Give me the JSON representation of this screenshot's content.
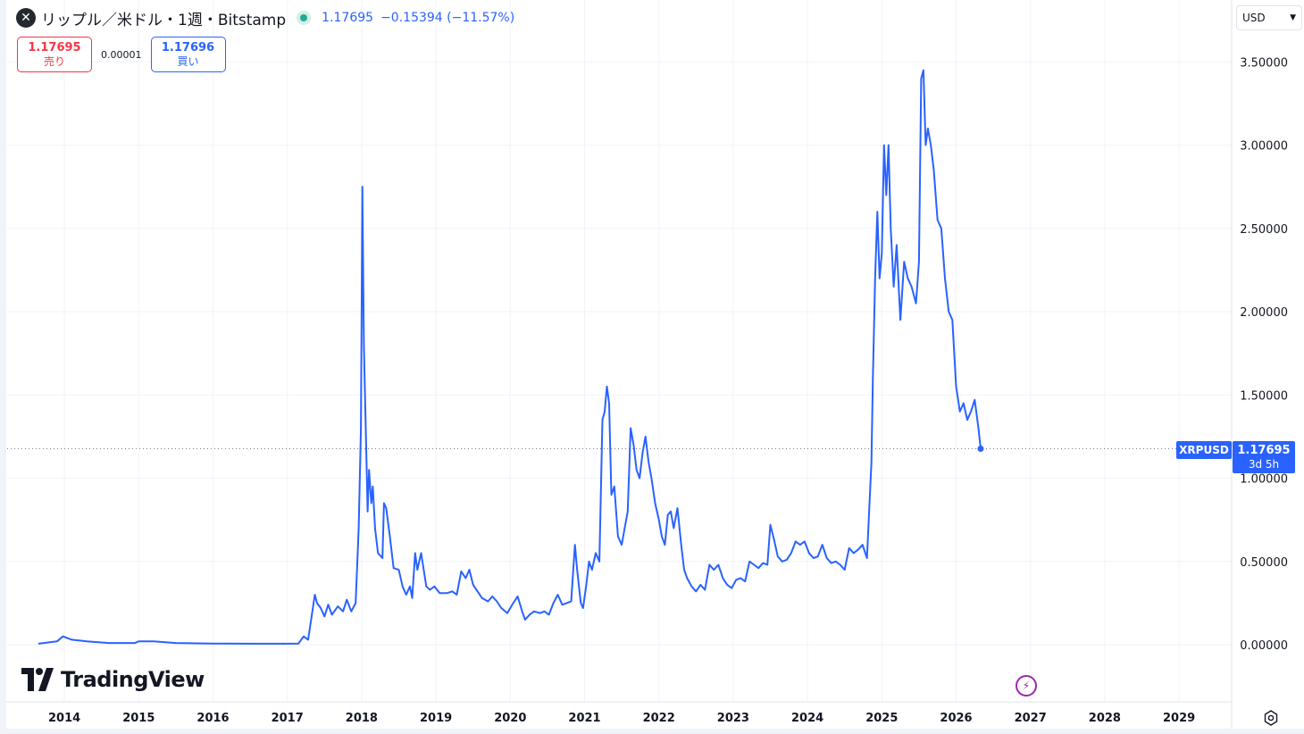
{
  "header": {
    "symbol_icon": "xrp-logo-icon",
    "symbol_icon_glyph": "✕",
    "title": "リップル／米ドル・1週・Bitstamp",
    "last_price": "1.17695",
    "change": "−0.15394 (−11.57%)",
    "status_color": "#22ab94"
  },
  "trade": {
    "sell_price": "1.17695",
    "sell_label": "売り",
    "spread": "0.00001",
    "buy_price": "1.17696",
    "buy_label": "買い"
  },
  "currency": {
    "value": "USD"
  },
  "price_tag": {
    "symbol": "XRPUSD",
    "price": "1.17695",
    "countdown": "3d 5h"
  },
  "branding": {
    "logo_text": "TradingView"
  },
  "icons": {
    "flash": "flash-icon",
    "settings": "settings-icon"
  },
  "colors": {
    "line": "#2962ff",
    "grid": "#f0f3fa",
    "axis_text": "#131722",
    "sell": "#f23645",
    "buy": "#2962ff"
  },
  "chart_data": {
    "type": "line",
    "title": "リップル／米ドル・1週・Bitstamp",
    "xlabel": "",
    "ylabel": "",
    "ylim": [
      0,
      3.5
    ],
    "xlim": [
      2013.5,
      2029.0
    ],
    "y_ticks": [
      "3.50000",
      "3.00000",
      "2.50000",
      "2.00000",
      "1.50000",
      "1.00000",
      "0.50000",
      "0.00000"
    ],
    "x_ticks": [
      "2014",
      "2015",
      "2016",
      "2017",
      "2018",
      "2019",
      "2020",
      "2021",
      "2022",
      "2023",
      "2024",
      "2025",
      "2026",
      "2027",
      "2028",
      "2029"
    ],
    "grid": true,
    "last_value": 1.17695,
    "series": [
      {
        "points": [
          [
            2013.65,
            0.006
          ],
          [
            2013.9,
            0.02
          ],
          [
            2013.98,
            0.05
          ],
          [
            2014.1,
            0.03
          ],
          [
            2014.3,
            0.02
          ],
          [
            2014.6,
            0.01
          ],
          [
            2014.95,
            0.01
          ],
          [
            2015.0,
            0.02
          ],
          [
            2015.2,
            0.02
          ],
          [
            2015.5,
            0.01
          ],
          [
            2016.0,
            0.007
          ],
          [
            2016.5,
            0.006
          ],
          [
            2017.0,
            0.006
          ],
          [
            2017.15,
            0.007
          ],
          [
            2017.22,
            0.05
          ],
          [
            2017.28,
            0.03
          ],
          [
            2017.33,
            0.18
          ],
          [
            2017.37,
            0.3
          ],
          [
            2017.4,
            0.25
          ],
          [
            2017.45,
            0.22
          ],
          [
            2017.5,
            0.17
          ],
          [
            2017.55,
            0.24
          ],
          [
            2017.6,
            0.18
          ],
          [
            2017.68,
            0.23
          ],
          [
            2017.75,
            0.2
          ],
          [
            2017.8,
            0.27
          ],
          [
            2017.86,
            0.2
          ],
          [
            2017.92,
            0.25
          ],
          [
            2017.96,
            0.7
          ],
          [
            2017.99,
            1.3
          ],
          [
            2018.0,
            2.0
          ],
          [
            2018.01,
            2.75
          ],
          [
            2018.03,
            1.8
          ],
          [
            2018.05,
            1.4
          ],
          [
            2018.08,
            0.8
          ],
          [
            2018.1,
            1.05
          ],
          [
            2018.13,
            0.85
          ],
          [
            2018.15,
            0.95
          ],
          [
            2018.18,
            0.7
          ],
          [
            2018.22,
            0.55
          ],
          [
            2018.28,
            0.52
          ],
          [
            2018.3,
            0.85
          ],
          [
            2018.33,
            0.82
          ],
          [
            2018.38,
            0.65
          ],
          [
            2018.43,
            0.46
          ],
          [
            2018.5,
            0.45
          ],
          [
            2018.55,
            0.35
          ],
          [
            2018.6,
            0.3
          ],
          [
            2018.65,
            0.35
          ],
          [
            2018.68,
            0.28
          ],
          [
            2018.72,
            0.55
          ],
          [
            2018.75,
            0.45
          ],
          [
            2018.8,
            0.55
          ],
          [
            2018.87,
            0.35
          ],
          [
            2018.92,
            0.33
          ],
          [
            2018.98,
            0.35
          ],
          [
            2019.05,
            0.31
          ],
          [
            2019.15,
            0.31
          ],
          [
            2019.22,
            0.32
          ],
          [
            2019.28,
            0.3
          ],
          [
            2019.34,
            0.44
          ],
          [
            2019.4,
            0.4
          ],
          [
            2019.45,
            0.45
          ],
          [
            2019.5,
            0.36
          ],
          [
            2019.56,
            0.32
          ],
          [
            2019.62,
            0.28
          ],
          [
            2019.7,
            0.26
          ],
          [
            2019.76,
            0.29
          ],
          [
            2019.82,
            0.26
          ],
          [
            2019.88,
            0.22
          ],
          [
            2019.96,
            0.19
          ],
          [
            2020.04,
            0.25
          ],
          [
            2020.1,
            0.29
          ],
          [
            2020.16,
            0.2
          ],
          [
            2020.2,
            0.15
          ],
          [
            2020.26,
            0.18
          ],
          [
            2020.32,
            0.2
          ],
          [
            2020.4,
            0.19
          ],
          [
            2020.46,
            0.2
          ],
          [
            2020.52,
            0.18
          ],
          [
            2020.58,
            0.25
          ],
          [
            2020.64,
            0.3
          ],
          [
            2020.7,
            0.24
          ],
          [
            2020.76,
            0.25
          ],
          [
            2020.82,
            0.26
          ],
          [
            2020.87,
            0.6
          ],
          [
            2020.9,
            0.45
          ],
          [
            2020.95,
            0.25
          ],
          [
            2020.98,
            0.22
          ],
          [
            2021.02,
            0.35
          ],
          [
            2021.06,
            0.5
          ],
          [
            2021.1,
            0.45
          ],
          [
            2021.15,
            0.55
          ],
          [
            2021.2,
            0.5
          ],
          [
            2021.24,
            1.35
          ],
          [
            2021.27,
            1.4
          ],
          [
            2021.3,
            1.55
          ],
          [
            2021.33,
            1.45
          ],
          [
            2021.36,
            0.9
          ],
          [
            2021.4,
            0.95
          ],
          [
            2021.45,
            0.65
          ],
          [
            2021.5,
            0.6
          ],
          [
            2021.54,
            0.7
          ],
          [
            2021.58,
            0.8
          ],
          [
            2021.62,
            1.3
          ],
          [
            2021.66,
            1.2
          ],
          [
            2021.7,
            1.05
          ],
          [
            2021.74,
            1.0
          ],
          [
            2021.78,
            1.15
          ],
          [
            2021.82,
            1.25
          ],
          [
            2021.86,
            1.1
          ],
          [
            2021.9,
            1.0
          ],
          [
            2021.95,
            0.85
          ],
          [
            2022.0,
            0.75
          ],
          [
            2022.04,
            0.65
          ],
          [
            2022.08,
            0.6
          ],
          [
            2022.12,
            0.78
          ],
          [
            2022.16,
            0.8
          ],
          [
            2022.2,
            0.7
          ],
          [
            2022.25,
            0.82
          ],
          [
            2022.3,
            0.6
          ],
          [
            2022.34,
            0.45
          ],
          [
            2022.38,
            0.4
          ],
          [
            2022.44,
            0.35
          ],
          [
            2022.5,
            0.32
          ],
          [
            2022.56,
            0.36
          ],
          [
            2022.62,
            0.33
          ],
          [
            2022.68,
            0.48
          ],
          [
            2022.74,
            0.45
          ],
          [
            2022.8,
            0.48
          ],
          [
            2022.86,
            0.4
          ],
          [
            2022.92,
            0.36
          ],
          [
            2022.98,
            0.34
          ],
          [
            2023.04,
            0.39
          ],
          [
            2023.1,
            0.4
          ],
          [
            2023.16,
            0.38
          ],
          [
            2023.22,
            0.5
          ],
          [
            2023.28,
            0.48
          ],
          [
            2023.34,
            0.46
          ],
          [
            2023.4,
            0.49
          ],
          [
            2023.46,
            0.48
          ],
          [
            2023.5,
            0.72
          ],
          [
            2023.55,
            0.63
          ],
          [
            2023.6,
            0.53
          ],
          [
            2023.66,
            0.5
          ],
          [
            2023.72,
            0.51
          ],
          [
            2023.78,
            0.55
          ],
          [
            2023.84,
            0.62
          ],
          [
            2023.9,
            0.6
          ],
          [
            2023.96,
            0.62
          ],
          [
            2024.02,
            0.55
          ],
          [
            2024.08,
            0.52
          ],
          [
            2024.14,
            0.53
          ],
          [
            2024.2,
            0.6
          ],
          [
            2024.26,
            0.52
          ],
          [
            2024.32,
            0.49
          ],
          [
            2024.38,
            0.5
          ],
          [
            2024.44,
            0.48
          ],
          [
            2024.5,
            0.45
          ],
          [
            2024.56,
            0.58
          ],
          [
            2024.62,
            0.55
          ],
          [
            2024.68,
            0.57
          ],
          [
            2024.74,
            0.6
          ],
          [
            2024.8,
            0.52
          ],
          [
            2024.86,
            1.1
          ],
          [
            2024.88,
            1.6
          ],
          [
            2024.91,
            2.2
          ],
          [
            2024.94,
            2.6
          ],
          [
            2024.97,
            2.2
          ],
          [
            2025.0,
            2.35
          ],
          [
            2025.03,
            3.0
          ],
          [
            2025.06,
            2.7
          ],
          [
            2025.09,
            3.0
          ],
          [
            2025.12,
            2.5
          ],
          [
            2025.16,
            2.15
          ],
          [
            2025.2,
            2.4
          ],
          [
            2025.25,
            1.95
          ],
          [
            2025.3,
            2.3
          ],
          [
            2025.35,
            2.2
          ],
          [
            2025.4,
            2.15
          ],
          [
            2025.46,
            2.05
          ],
          [
            2025.5,
            2.3
          ],
          [
            2025.53,
            3.4
          ],
          [
            2025.56,
            3.45
          ],
          [
            2025.59,
            3.0
          ],
          [
            2025.62,
            3.1
          ],
          [
            2025.66,
            3.0
          ],
          [
            2025.7,
            2.85
          ],
          [
            2025.75,
            2.55
          ],
          [
            2025.8,
            2.5
          ],
          [
            2025.85,
            2.2
          ],
          [
            2025.9,
            2.0
          ],
          [
            2025.95,
            1.95
          ],
          [
            2026.0,
            1.55
          ],
          [
            2026.05,
            1.4
          ],
          [
            2026.1,
            1.45
          ],
          [
            2026.15,
            1.35
          ],
          [
            2026.2,
            1.4
          ],
          [
            2026.25,
            1.47
          ],
          [
            2026.3,
            1.3
          ],
          [
            2026.33,
            1.17695
          ]
        ]
      }
    ]
  }
}
